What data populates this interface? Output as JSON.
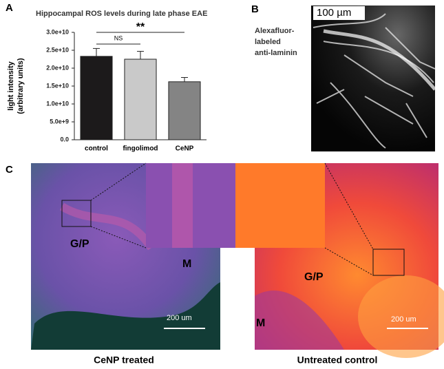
{
  "chart_data": {
    "type": "bar",
    "title": "Hippocampal ROS levels during late phase EAE",
    "ylabel": [
      "light intensity",
      "(arbitrary units)"
    ],
    "categories": [
      "control",
      "fingolimod",
      "CeNP"
    ],
    "series": [
      {
        "values": [
          23300000000,
          22500000000,
          16200000000
        ],
        "errors": [
          2200000000,
          2200000000,
          1200000000
        ],
        "colors": [
          "#1c1a1b",
          "#c9c9c9",
          "#848484"
        ]
      }
    ],
    "ylim": [
      0,
      30000000000
    ],
    "yticks": [
      {
        "value": 0,
        "label": "0.0"
      },
      {
        "value": 5000000000,
        "label": "5.0e+9"
      },
      {
        "value": 10000000000,
        "label": "1.0e+10"
      },
      {
        "value": 15000000000,
        "label": "1.5e+10"
      },
      {
        "value": 20000000000,
        "label": "2.0e+10"
      },
      {
        "value": 25000000000,
        "label": "2.5e+10"
      },
      {
        "value": 30000000000,
        "label": "3.0e+10"
      }
    ],
    "annotations": [
      "NS",
      "**"
    ],
    "grid": false
  },
  "panel_labels": [
    "A",
    "B",
    "C"
  ],
  "panel_b": {
    "scale_bar": "100 µm",
    "caption": [
      "Alexafluor-",
      "labeled",
      "anti-laminin"
    ]
  },
  "panel_c": {
    "left": {
      "labels": [
        "G/P",
        "M"
      ],
      "scale_bar": "200 um",
      "caption": "CeNP treated"
    },
    "right": {
      "labels": [
        "G/P",
        "M"
      ],
      "scale_bar": "200 um",
      "caption": "Untreated control"
    }
  }
}
